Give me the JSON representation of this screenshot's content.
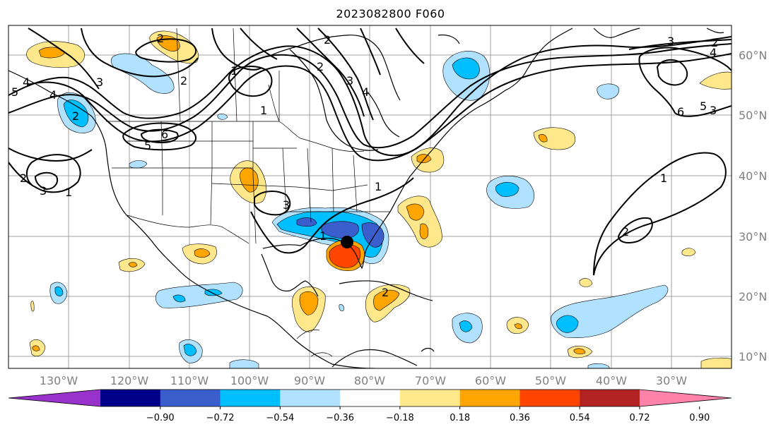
{
  "title": "2023082800 F060",
  "lon_labels": [
    "130°W",
    "120°W",
    "110°W",
    "100°W",
    "90°W",
    "80°W",
    "70°W",
    "60°W",
    "50°W",
    "40°W",
    "30°W"
  ],
  "lat_labels": [
    "60°N",
    "50°N",
    "40°N",
    "30°N",
    "20°N",
    "10°N"
  ],
  "colorbar": {
    "ticks": [
      "−0.90",
      "−0.72",
      "−0.54",
      "−0.36",
      "−0.18",
      "0.18",
      "0.36",
      "0.54",
      "0.72",
      "0.90"
    ],
    "colors": [
      "#9932cc",
      "#00008b",
      "#3a5fcd",
      "#00bfff",
      "#b0e2ff",
      "#ffffff",
      "#ffe88c",
      "#ffa500",
      "#ff4500",
      "#b22222",
      "#ff82ab"
    ]
  },
  "contour_labels": {
    "c1": "5",
    "c2": "4",
    "c3": "4",
    "c4": "3",
    "c5": "2",
    "c6": "2",
    "c7": "1",
    "c8": "1",
    "c9": "6",
    "c10": "5",
    "c11": "2",
    "c12": "3",
    "c13": "1",
    "c14": "2",
    "c15": "3",
    "c16": "3",
    "c17": "2",
    "c18": "4",
    "c19": "5",
    "c20": "6",
    "c21": "1",
    "c22": "2",
    "c23": "3",
    "c24": "2",
    "c25": "2",
    "c26": "1",
    "c27": "3",
    "c28": "2",
    "c29": "4",
    "c30": "1"
  },
  "storm_marker": {
    "lon": -84,
    "lat": 29
  }
}
